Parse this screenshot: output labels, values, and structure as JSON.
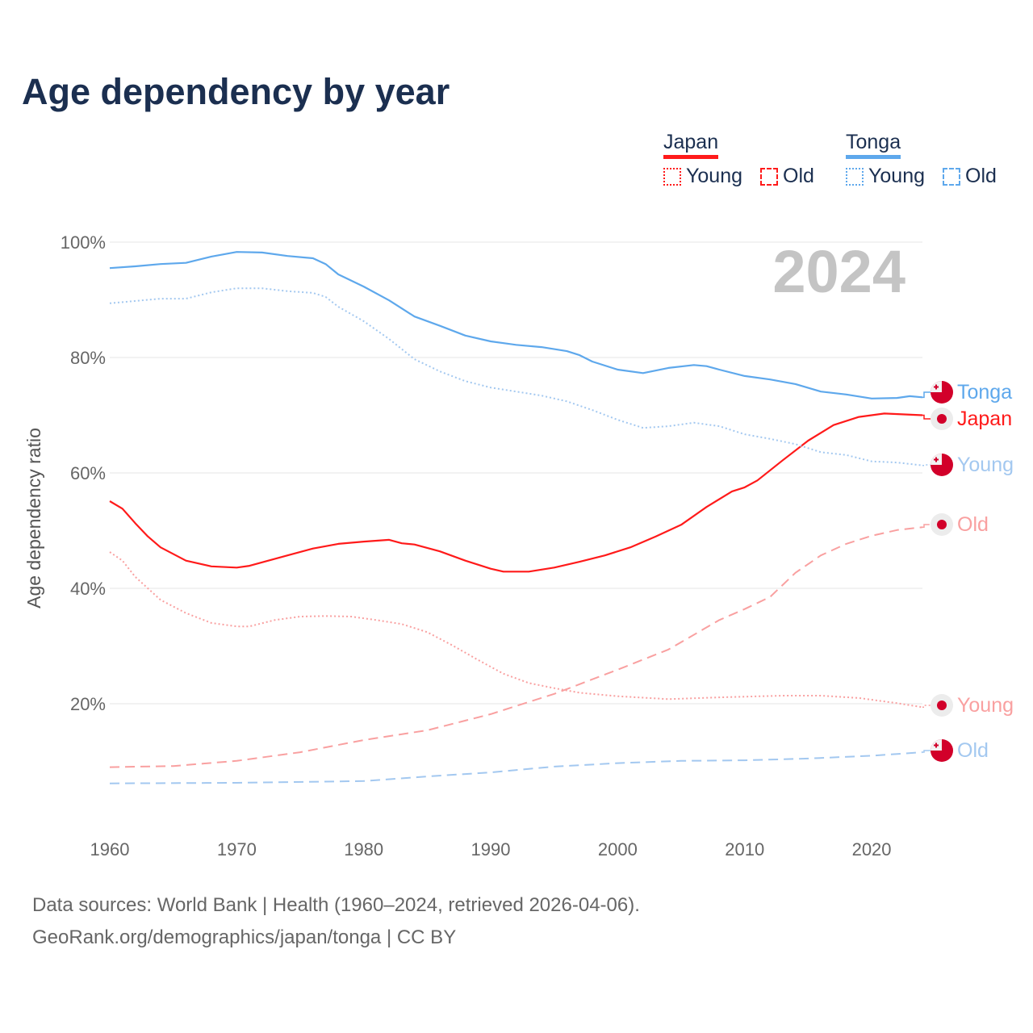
{
  "title": "Age dependency by year",
  "legend": {
    "countries": [
      {
        "name": "Japan",
        "color": "#ff1a1a",
        "items": [
          "Young",
          "Old"
        ]
      },
      {
        "name": "Tonga",
        "color": "#5ea8ec",
        "items": [
          "Young",
          "Old"
        ]
      }
    ]
  },
  "sources": {
    "line1": "Data sources: World Bank | Health (1960–2024, retrieved 2026-04-06).",
    "line2": "GeoRank.org/demographics/japan/tonga | CC BY"
  },
  "chart_data": {
    "type": "line",
    "title": "Age dependency by year",
    "year_label": "2024",
    "xlabel": "",
    "ylabel": "Age dependency ratio",
    "xlim": [
      1960,
      2024
    ],
    "ylim": [
      0,
      100
    ],
    "x_ticks": [
      1960,
      1970,
      1980,
      1990,
      2000,
      2010,
      2020
    ],
    "x_tick_labels": [
      "1960",
      "1970",
      "1980",
      "1990",
      "2000",
      "2010",
      "2020"
    ],
    "y_ticks": [
      20,
      40,
      60,
      80,
      100
    ],
    "y_tick_labels": [
      "20%",
      "40%",
      "60%",
      "80%",
      "100%"
    ],
    "grid": true,
    "legend_position": "top-right",
    "series": [
      {
        "name": "Tonga",
        "label": "Tonga",
        "country": "Tonga",
        "style": "solid",
        "color": "#5ea8ec",
        "points": [
          [
            1960,
            95.5
          ],
          [
            1962,
            95.8
          ],
          [
            1964,
            96.2
          ],
          [
            1966,
            96.4
          ],
          [
            1968,
            97.5
          ],
          [
            1970,
            98.3
          ],
          [
            1972,
            98.2
          ],
          [
            1974,
            97.6
          ],
          [
            1976,
            97.2
          ],
          [
            1977,
            96.2
          ],
          [
            1978,
            94.4
          ],
          [
            1980,
            92.3
          ],
          [
            1982,
            89.9
          ],
          [
            1984,
            87.1
          ],
          [
            1986,
            85.5
          ],
          [
            1988,
            83.8
          ],
          [
            1990,
            82.8
          ],
          [
            1992,
            82.2
          ],
          [
            1994,
            81.8
          ],
          [
            1996,
            81.1
          ],
          [
            1997,
            80.4
          ],
          [
            1998,
            79.3
          ],
          [
            2000,
            77.9
          ],
          [
            2002,
            77.3
          ],
          [
            2004,
            78.2
          ],
          [
            2006,
            78.7
          ],
          [
            2007,
            78.5
          ],
          [
            2008,
            77.9
          ],
          [
            2010,
            76.8
          ],
          [
            2012,
            76.2
          ],
          [
            2014,
            75.4
          ],
          [
            2016,
            74.1
          ],
          [
            2018,
            73.6
          ],
          [
            2020,
            72.9
          ],
          [
            2022,
            73.0
          ],
          [
            2023,
            73.3
          ],
          [
            2024,
            73.1
          ]
        ]
      },
      {
        "name": "Japan",
        "label": "Japan",
        "country": "Japan",
        "style": "solid",
        "color": "#ff1a1a",
        "points": [
          [
            1960,
            55.1
          ],
          [
            1961,
            53.8
          ],
          [
            1962,
            51.3
          ],
          [
            1963,
            49.0
          ],
          [
            1964,
            47.1
          ],
          [
            1966,
            44.8
          ],
          [
            1968,
            43.8
          ],
          [
            1970,
            43.6
          ],
          [
            1971,
            43.9
          ],
          [
            1974,
            45.7
          ],
          [
            1976,
            46.9
          ],
          [
            1978,
            47.7
          ],
          [
            1980,
            48.1
          ],
          [
            1982,
            48.4
          ],
          [
            1983,
            47.8
          ],
          [
            1984,
            47.6
          ],
          [
            1986,
            46.4
          ],
          [
            1988,
            44.8
          ],
          [
            1990,
            43.4
          ],
          [
            1991,
            42.9
          ],
          [
            1993,
            42.9
          ],
          [
            1995,
            43.6
          ],
          [
            1997,
            44.6
          ],
          [
            1999,
            45.7
          ],
          [
            2001,
            47.1
          ],
          [
            2003,
            49.0
          ],
          [
            2005,
            51.0
          ],
          [
            2007,
            54.1
          ],
          [
            2009,
            56.8
          ],
          [
            2010,
            57.5
          ],
          [
            2011,
            58.7
          ],
          [
            2013,
            62.2
          ],
          [
            2015,
            65.6
          ],
          [
            2017,
            68.3
          ],
          [
            2019,
            69.7
          ],
          [
            2021,
            70.3
          ],
          [
            2024,
            70.0
          ]
        ]
      },
      {
        "name": "Tonga Young",
        "label": "Young",
        "country": "Tonga",
        "style": "dotted",
        "color": "#a3c8f0",
        "points": [
          [
            1960,
            89.4
          ],
          [
            1964,
            90.2
          ],
          [
            1966,
            90.2
          ],
          [
            1968,
            91.3
          ],
          [
            1970,
            92.0
          ],
          [
            1972,
            92.0
          ],
          [
            1974,
            91.5
          ],
          [
            1976,
            91.2
          ],
          [
            1977,
            90.5
          ],
          [
            1978,
            88.8
          ],
          [
            1980,
            86.3
          ],
          [
            1982,
            83.2
          ],
          [
            1984,
            79.7
          ],
          [
            1986,
            77.6
          ],
          [
            1988,
            75.9
          ],
          [
            1990,
            74.8
          ],
          [
            1992,
            74.1
          ],
          [
            1994,
            73.4
          ],
          [
            1996,
            72.4
          ],
          [
            1998,
            70.9
          ],
          [
            2000,
            69.2
          ],
          [
            2002,
            67.8
          ],
          [
            2004,
            68.1
          ],
          [
            2006,
            68.7
          ],
          [
            2008,
            68.1
          ],
          [
            2010,
            66.7
          ],
          [
            2012,
            65.9
          ],
          [
            2014,
            65.0
          ],
          [
            2016,
            63.6
          ],
          [
            2018,
            63.1
          ],
          [
            2020,
            62.0
          ],
          [
            2022,
            61.8
          ],
          [
            2024,
            61.3
          ]
        ]
      },
      {
        "name": "Japan Old",
        "label": "Old",
        "country": "Japan",
        "style": "dashed",
        "color": "#f9a0a0",
        "points": [
          [
            1960,
            9.0
          ],
          [
            1965,
            9.2
          ],
          [
            1970,
            10.1
          ],
          [
            1975,
            11.6
          ],
          [
            1980,
            13.7
          ],
          [
            1985,
            15.4
          ],
          [
            1990,
            18.2
          ],
          [
            1995,
            21.7
          ],
          [
            2000,
            25.9
          ],
          [
            2004,
            29.4
          ],
          [
            2008,
            34.5
          ],
          [
            2010,
            36.4
          ],
          [
            2012,
            38.5
          ],
          [
            2014,
            42.7
          ],
          [
            2016,
            45.7
          ],
          [
            2018,
            47.7
          ],
          [
            2020,
            49.1
          ],
          [
            2022,
            50.1
          ],
          [
            2024,
            50.6
          ]
        ]
      },
      {
        "name": "Japan Young",
        "label": "Young",
        "country": "Japan",
        "style": "dotted",
        "color": "#f9a0a0",
        "points": [
          [
            1960,
            46.3
          ],
          [
            1961,
            44.8
          ],
          [
            1962,
            42.0
          ],
          [
            1964,
            38.0
          ],
          [
            1966,
            35.7
          ],
          [
            1968,
            34.0
          ],
          [
            1970,
            33.4
          ],
          [
            1971,
            33.4
          ],
          [
            1973,
            34.5
          ],
          [
            1975,
            35.1
          ],
          [
            1977,
            35.2
          ],
          [
            1979,
            35.1
          ],
          [
            1981,
            34.5
          ],
          [
            1983,
            33.8
          ],
          [
            1985,
            32.4
          ],
          [
            1987,
            30.1
          ],
          [
            1989,
            27.6
          ],
          [
            1991,
            25.2
          ],
          [
            1993,
            23.6
          ],
          [
            1995,
            22.7
          ],
          [
            1997,
            21.9
          ],
          [
            2000,
            21.3
          ],
          [
            2004,
            20.8
          ],
          [
            2008,
            21.1
          ],
          [
            2013,
            21.4
          ],
          [
            2016,
            21.4
          ],
          [
            2019,
            21.0
          ],
          [
            2022,
            20.1
          ],
          [
            2024,
            19.4
          ]
        ]
      },
      {
        "name": "Tonga Old",
        "label": "Old",
        "country": "Tonga",
        "style": "dashed",
        "color": "#a3c8f0",
        "points": [
          [
            1960,
            6.2
          ],
          [
            1970,
            6.3
          ],
          [
            1980,
            6.6
          ],
          [
            1985,
            7.4
          ],
          [
            1990,
            8.1
          ],
          [
            1995,
            9.1
          ],
          [
            2000,
            9.7
          ],
          [
            2005,
            10.1
          ],
          [
            2010,
            10.2
          ],
          [
            2015,
            10.5
          ],
          [
            2020,
            11.0
          ],
          [
            2024,
            11.6
          ]
        ]
      }
    ]
  }
}
